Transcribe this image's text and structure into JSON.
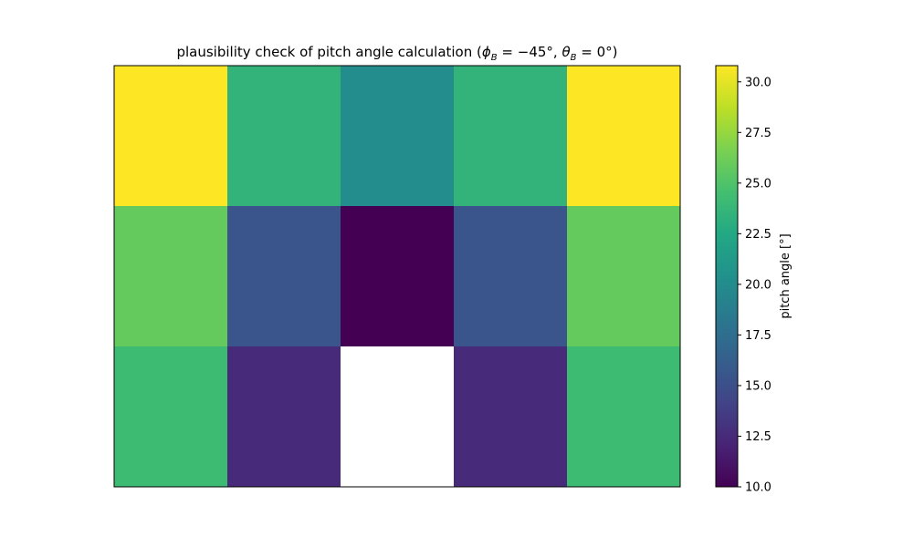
{
  "chart_data": {
    "type": "heatmap",
    "title": "plausibility check of pitch angle calculation (φ",
    "title_parts": {
      "prefix": "plausibility check of pitch angle calculation (",
      "phi": "ϕ",
      "sub_b": "B",
      "phi_rest": " = −45°,  ",
      "theta": "θ",
      "theta_rest": " = 0°)"
    },
    "rows": 3,
    "cols": 5,
    "values": [
      [
        30.8,
        23.5,
        20.0,
        23.5,
        30.8
      ],
      [
        25.8,
        15.5,
        10.0,
        15.5,
        25.8
      ],
      [
        24.2,
        12.5,
        null,
        12.5,
        24.2
      ]
    ],
    "missing_color": "#ffffff",
    "colormap": "viridis",
    "vmin": 10.0,
    "vmax": 30.8,
    "colorbar": {
      "label": "pitch angle [°]",
      "ticks": [
        "10.0",
        "12.5",
        "15.0",
        "17.5",
        "20.0",
        "22.5",
        "25.0",
        "27.5",
        "30.0"
      ],
      "tick_values": [
        10.0,
        12.5,
        15.0,
        17.5,
        20.0,
        22.5,
        25.0,
        27.5,
        30.0
      ]
    },
    "xlabel": "",
    "ylabel": "",
    "axes_visible": false
  }
}
